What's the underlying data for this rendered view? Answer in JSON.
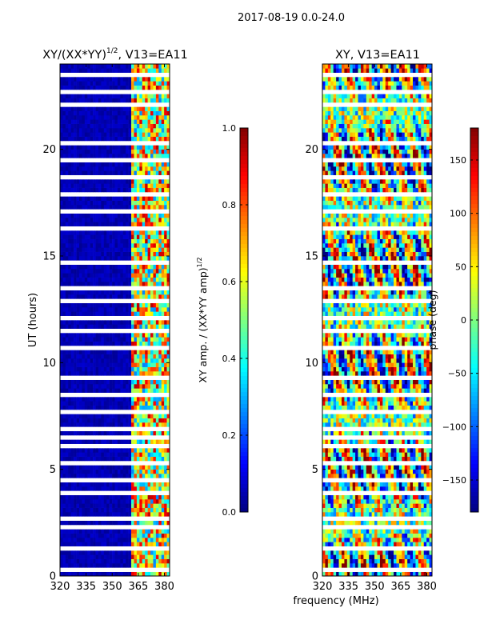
{
  "figure": {
    "suptitle": "2017-08-19 0.0-24.0",
    "shared_xlabel": "frequency (MHz)"
  },
  "chart_data": [
    {
      "type": "heatmap",
      "title_main": "XY/(XX*YY)",
      "title_exp": "1/2",
      "title_suffix": ", V13=EA11",
      "xlabel": "",
      "ylabel": "UT (hours)",
      "xlim": [
        320,
        383
      ],
      "ylim": [
        0,
        24
      ],
      "xticks": [
        320,
        335,
        350,
        365,
        380
      ],
      "yticks": [
        0,
        5,
        10,
        15,
        20
      ],
      "colormap": "jet",
      "colorbar": {
        "label_main": "XY amp. / (XX*YY amp)",
        "label_exp": "1/2",
        "vmin": 0.0,
        "vmax": 1.0,
        "ticks": [
          "0.0",
          "0.2",
          "0.4",
          "0.6",
          "0.8",
          "1.0"
        ],
        "tick_values": [
          0.0,
          0.2,
          0.4,
          0.6,
          0.8,
          1.0
        ]
      },
      "pattern": "low amplitude (~0.0) below 360 MHz; high/variable amplitude (0.3-0.9) for 362-380 MHz",
      "flagged_hours_white": [
        0.3,
        1.2,
        2.2,
        2.6,
        3.7,
        4.4,
        5.1,
        5.9,
        6.4,
        6.8,
        7.6,
        8.3,
        9.1,
        10.6,
        11.4,
        12.0,
        12.8,
        13.4,
        14.6,
        16.2,
        17.0,
        17.8,
        18.6,
        19.3,
        20.2,
        21.9,
        22.6,
        23.3
      ]
    },
    {
      "type": "heatmap",
      "title_main": "XY, V13=EA11",
      "xlabel": "",
      "ylabel": "",
      "xlim": [
        320,
        383
      ],
      "ylim": [
        0,
        24
      ],
      "xticks": [
        320,
        335,
        350,
        365,
        380
      ],
      "yticks": [
        0,
        5,
        10,
        15,
        20
      ],
      "colormap": "jet",
      "colorbar": {
        "label_main": "phase (deg)",
        "vmin": -180,
        "vmax": 180,
        "ticks": [
          "150",
          "100",
          "50",
          "0",
          "−50",
          "−100",
          "−150"
        ],
        "tick_values": [
          150,
          100,
          50,
          0,
          -50,
          -100,
          -150
        ]
      },
      "pattern": "phase wraps between -180 and 180 deg across full band",
      "flagged_hours_white": [
        0.3,
        1.2,
        2.2,
        2.6,
        3.7,
        4.4,
        5.1,
        5.9,
        6.4,
        6.8,
        7.6,
        8.3,
        9.1,
        10.6,
        11.4,
        12.0,
        12.8,
        13.4,
        14.6,
        16.2,
        17.0,
        17.8,
        18.6,
        19.3,
        20.2,
        21.9,
        22.6,
        23.3
      ]
    }
  ]
}
